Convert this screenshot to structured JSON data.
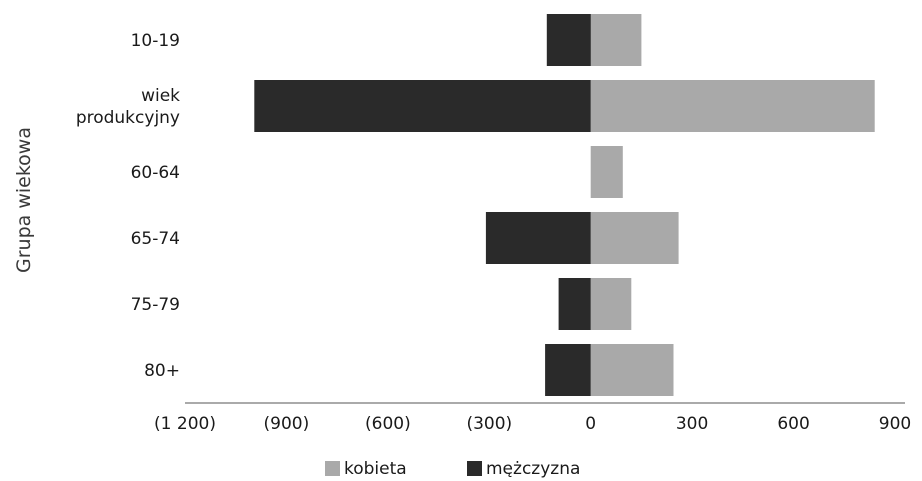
{
  "chart_data": {
    "type": "bar",
    "orientation": "horizontal",
    "stacked": true,
    "categories": [
      "10-19",
      "wiek produkcyjny",
      "60-64",
      "65-74",
      "75-79",
      "80+"
    ],
    "category_lines": [
      [
        "10-19"
      ],
      [
        "wiek",
        "produkcyjny"
      ],
      [
        "60-64"
      ],
      [
        "65-74"
      ],
      [
        "75-79"
      ],
      [
        "80+"
      ]
    ],
    "series": [
      {
        "name": "kobieta",
        "values": [
          150,
          840,
          95,
          260,
          120,
          245
        ]
      },
      {
        "name": "mężczyzna",
        "values": [
          -130,
          -995,
          0,
          -310,
          -95,
          -135
        ]
      }
    ],
    "x_ticks": [
      -1200,
      -900,
      -600,
      -300,
      0,
      300,
      600,
      900
    ],
    "x_tick_labels": [
      "(1 200)",
      "(900)",
      "(600)",
      "(300)",
      "0",
      "300",
      "600",
      "900"
    ],
    "xlim": [
      -1200,
      900
    ],
    "xlabel": "",
    "ylabel": "Grupa wiekowa",
    "title": "",
    "grid": false,
    "legend_position": "bottom",
    "colors": {
      "kobieta": "#a9a9a9",
      "mężczyzna": "#2a2a2a",
      "axis": "#555555"
    }
  }
}
